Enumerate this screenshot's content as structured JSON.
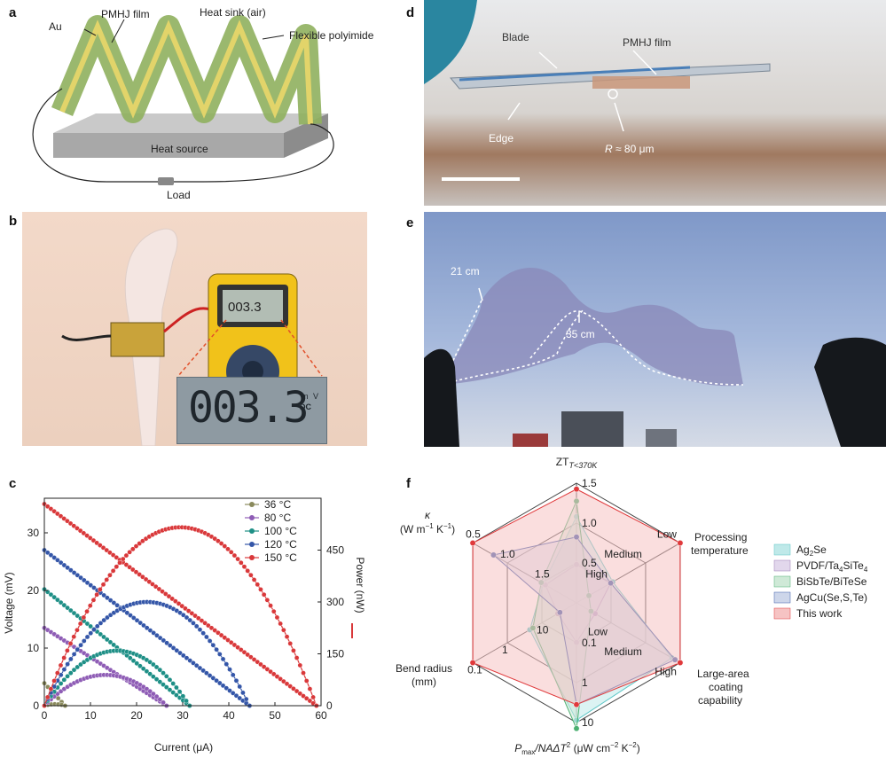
{
  "panels": {
    "a": {
      "letter": "a",
      "labels": {
        "au": "Au",
        "pmhj": "PMHJ film",
        "heat_sink": "Heat sink (air)",
        "polyimide": "Flexible polyimide",
        "heat_source": "Heat source",
        "load": "Load"
      }
    },
    "b": {
      "letter": "b",
      "meter_small": "003.3",
      "meter_big": "003.3",
      "meter_unit_top": "m",
      "meter_unit_v": "V",
      "meter_unit_dc": "DC"
    },
    "c": {
      "letter": "c"
    },
    "d": {
      "letter": "d",
      "labels": {
        "blade": "Blade",
        "pmhj": "PMHJ film",
        "edge": "Edge",
        "radius_sym": "R",
        "radius_val": " ≈ 80 μm"
      }
    },
    "e": {
      "letter": "e",
      "labels": {
        "w21": "21 cm",
        "w35": "35 cm"
      }
    },
    "f": {
      "letter": "f"
    }
  },
  "chart_data": [
    {
      "type": "line",
      "panel": "c",
      "xlabel": "Current (μA)",
      "ylabel_left": "Voltage (mV)",
      "ylabel_right": "Power (nW)",
      "xlim": [
        0,
        60
      ],
      "ylim_left": [
        0,
        36
      ],
      "ylim_right": [
        0,
        600
      ],
      "xticks": [
        "0",
        "10",
        "20",
        "30",
        "40",
        "50",
        "60"
      ],
      "yticks_left": [
        "0",
        "10",
        "20",
        "30"
      ],
      "yticks_right": [
        "0",
        "150",
        "300",
        "450"
      ],
      "series": [
        {
          "name": "36 °C",
          "color": "#8a8a5c",
          "voc": 3.9,
          "isc": 4.5,
          "power_max": 4.4
        },
        {
          "name": "80 °C",
          "color": "#8e5cb5",
          "voc": 13.5,
          "isc": 26.5,
          "power_max": 89
        },
        {
          "name": "100 °C",
          "color": "#1e8f86",
          "voc": 20.2,
          "isc": 31.5,
          "power_max": 159
        },
        {
          "name": "120 °C",
          "color": "#3456a8",
          "voc": 27.0,
          "isc": 44.5,
          "power_max": 300
        },
        {
          "name": "150 °C",
          "color": "#d9383a",
          "voc": 35.0,
          "isc": 59.0,
          "power_max": 516
        }
      ]
    },
    {
      "type": "radar",
      "panel": "f",
      "axes": [
        {
          "name": "ZT",
          "sub": "T<370K",
          "ticks": [
            "1.5",
            "1.0",
            "0.5"
          ]
        },
        {
          "name": "Processing temperature",
          "ticks": [
            "Low",
            "Medium",
            "High"
          ]
        },
        {
          "name": "Large-area coating capability",
          "ticks": [
            "High",
            "Medium",
            "Low"
          ]
        },
        {
          "name": "Pmax/NAΔT2 (μW cm−2 K−2)",
          "ticks": [
            "10",
            "1",
            "0.1"
          ]
        },
        {
          "name": "Bend radius (mm)",
          "ticks": [
            "0.1",
            "1",
            "10"
          ]
        },
        {
          "name": "κ (W m−1 K−1)",
          "ticks": [
            "0.5",
            "1.0",
            "1.5"
          ]
        }
      ],
      "texts": {
        "zt": "ZT",
        "zt_sub": "T<370K",
        "proc1": "Processing",
        "proc2": "temperature",
        "large1": "Large-area",
        "large2": "coating",
        "large3": "capability",
        "pmax_p": "P",
        "pmax_sub": "max",
        "pmax_mid": "/NAΔT",
        "pmax_sup": "2",
        "pmax_unit": " (μW cm",
        "pmax_unit_sup1": "−2",
        "pmax_unit_mid": " K",
        "pmax_unit_sup2": "−2",
        "pmax_close": ")",
        "bend1": "Bend radius",
        "bend2": "(mm)",
        "kappa_sym": "κ",
        "kappa_unit": "(W m",
        "kappa_sup1": "−1",
        "kappa_mid": " K",
        "kappa_sup2": "−1",
        "kappa_close": ")"
      },
      "series": [
        {
          "name": "Ag2Se",
          "legend_main": "Ag",
          "legend_sub": "2",
          "legend_rest": "Se",
          "color": "#5cc6c6",
          "fill": "#bfe9e9",
          "values": [
            0.72,
            0.35,
            0.92,
            0.98,
            0.45,
            0.32
          ]
        },
        {
          "name": "PVDF/Ta4SiTe4",
          "legend_main": "PVDF/Ta",
          "legend_sub": "4",
          "legend_rest": "SiTe",
          "legend_sub2": "4",
          "color": "#9b7bb5",
          "fill": "#e2d7ec",
          "values": [
            0.32,
            0.33,
            0.18,
            0.33,
            0.18,
            0.3
          ]
        },
        {
          "name": "BiSbTe/BiTeSe",
          "legend_main": "BiSbTe/BiTeSe",
          "color": "#4cb071",
          "fill": "#cfe9d7",
          "values": [
            0.85,
            0.12,
            0.14,
            1.05,
            0.42,
            0.34
          ]
        },
        {
          "name": "AgCu(Se,S,Te)",
          "legend_main": "AgCu(Se,S,Te)",
          "color": "#3a5aa8",
          "fill": "#cdd6ea",
          "values": [
            0.55,
            0.33,
            0.95,
            0.85,
            0.16,
            0.8
          ]
        },
        {
          "name": "This work",
          "legend_main": "This work",
          "color": "#e0393b",
          "fill": "#f6c3c3",
          "values": [
            0.95,
            1.0,
            1.0,
            0.85,
            1.0,
            1.0
          ]
        }
      ]
    }
  ]
}
